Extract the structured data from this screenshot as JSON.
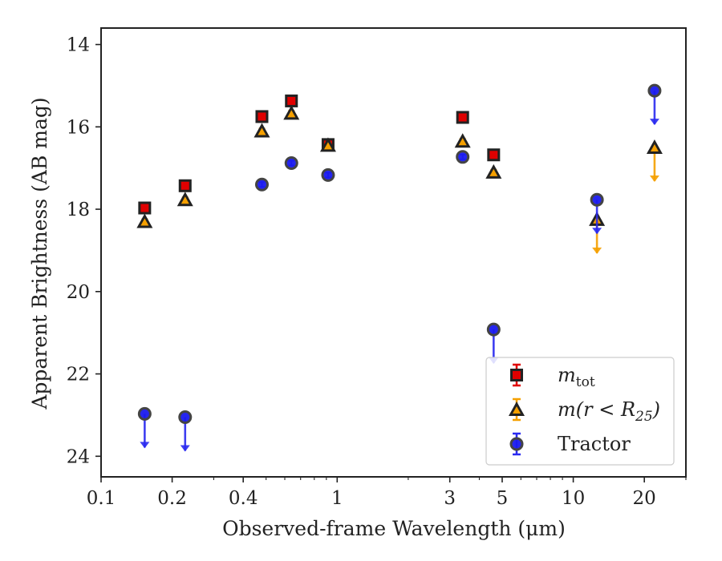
{
  "chart_data": {
    "type": "scatter",
    "xscale": "log",
    "xlim": [
      0.1,
      30
    ],
    "ylim": [
      24.5,
      13.6
    ],
    "yinverted": true,
    "xlabel": "Observed-frame Wavelength (μm)",
    "ylabel": "Apparent Brightness (AB mag)",
    "xticks": [
      {
        "value": 0.1,
        "label": "0.1"
      },
      {
        "value": 0.2,
        "label": "0.2"
      },
      {
        "value": 0.4,
        "label": "0.4"
      },
      {
        "value": 1,
        "label": "1"
      },
      {
        "value": 3,
        "label": "3"
      },
      {
        "value": 5,
        "label": "5"
      },
      {
        "value": 10,
        "label": "10"
      },
      {
        "value": 20,
        "label": "20"
      }
    ],
    "yticks": [
      {
        "value": 14,
        "label": "14"
      },
      {
        "value": 16,
        "label": "16"
      },
      {
        "value": 18,
        "label": "18"
      },
      {
        "value": 20,
        "label": "20"
      },
      {
        "value": 22,
        "label": "22"
      },
      {
        "value": 24,
        "label": "24"
      }
    ],
    "series": [
      {
        "name": "m_tot",
        "marker": "square",
        "color": "#e00000",
        "edge": "#222222",
        "errcolor": "#e00000",
        "points": [
          {
            "x": 0.153,
            "y": 17.97
          },
          {
            "x": 0.227,
            "y": 17.43
          },
          {
            "x": 0.48,
            "y": 15.75
          },
          {
            "x": 0.64,
            "y": 15.37
          },
          {
            "x": 0.915,
            "y": 16.43
          },
          {
            "x": 3.4,
            "y": 15.77
          },
          {
            "x": 4.6,
            "y": 16.68
          }
        ]
      },
      {
        "name": "m(r < R25)",
        "marker": "triangle",
        "color": "#f5a000",
        "edge": "#222222",
        "errcolor": "#f5a000",
        "points": [
          {
            "x": 0.153,
            "y": 18.3
          },
          {
            "x": 0.227,
            "y": 17.77
          },
          {
            "x": 0.48,
            "y": 16.1
          },
          {
            "x": 0.64,
            "y": 15.67
          },
          {
            "x": 0.915,
            "y": 16.45
          },
          {
            "x": 3.4,
            "y": 16.35
          },
          {
            "x": 4.6,
            "y": 17.1
          },
          {
            "x": 12.6,
            "y": 18.25,
            "upper_limit": true
          },
          {
            "x": 22.1,
            "y": 16.5,
            "upper_limit": true
          }
        ]
      },
      {
        "name": "Tractor",
        "marker": "circle",
        "color": "#1a1aee",
        "edge": "#444444",
        "errcolor": "#2a2af0",
        "points": [
          {
            "x": 0.153,
            "y": 22.97,
            "upper_limit": true
          },
          {
            "x": 0.227,
            "y": 23.05,
            "upper_limit": true
          },
          {
            "x": 0.48,
            "y": 17.4
          },
          {
            "x": 0.64,
            "y": 16.88
          },
          {
            "x": 0.915,
            "y": 17.17
          },
          {
            "x": 3.4,
            "y": 16.73
          },
          {
            "x": 4.6,
            "y": 20.92,
            "upper_limit": true
          },
          {
            "x": 12.6,
            "y": 17.77,
            "upper_limit": true
          },
          {
            "x": 22.1,
            "y": 15.12,
            "upper_limit": true
          }
        ]
      }
    ],
    "legend": {
      "placement": "lower right",
      "entries": [
        {
          "series": 0,
          "label_html": "m<sub>tot</sub>",
          "label": "m",
          "sub": "tot",
          "italic": true
        },
        {
          "series": 1,
          "label": "m(r < R",
          "sub": "25",
          "suffix": ")",
          "italic": true
        },
        {
          "series": 2,
          "label": "Tractor",
          "italic": false
        }
      ]
    }
  }
}
